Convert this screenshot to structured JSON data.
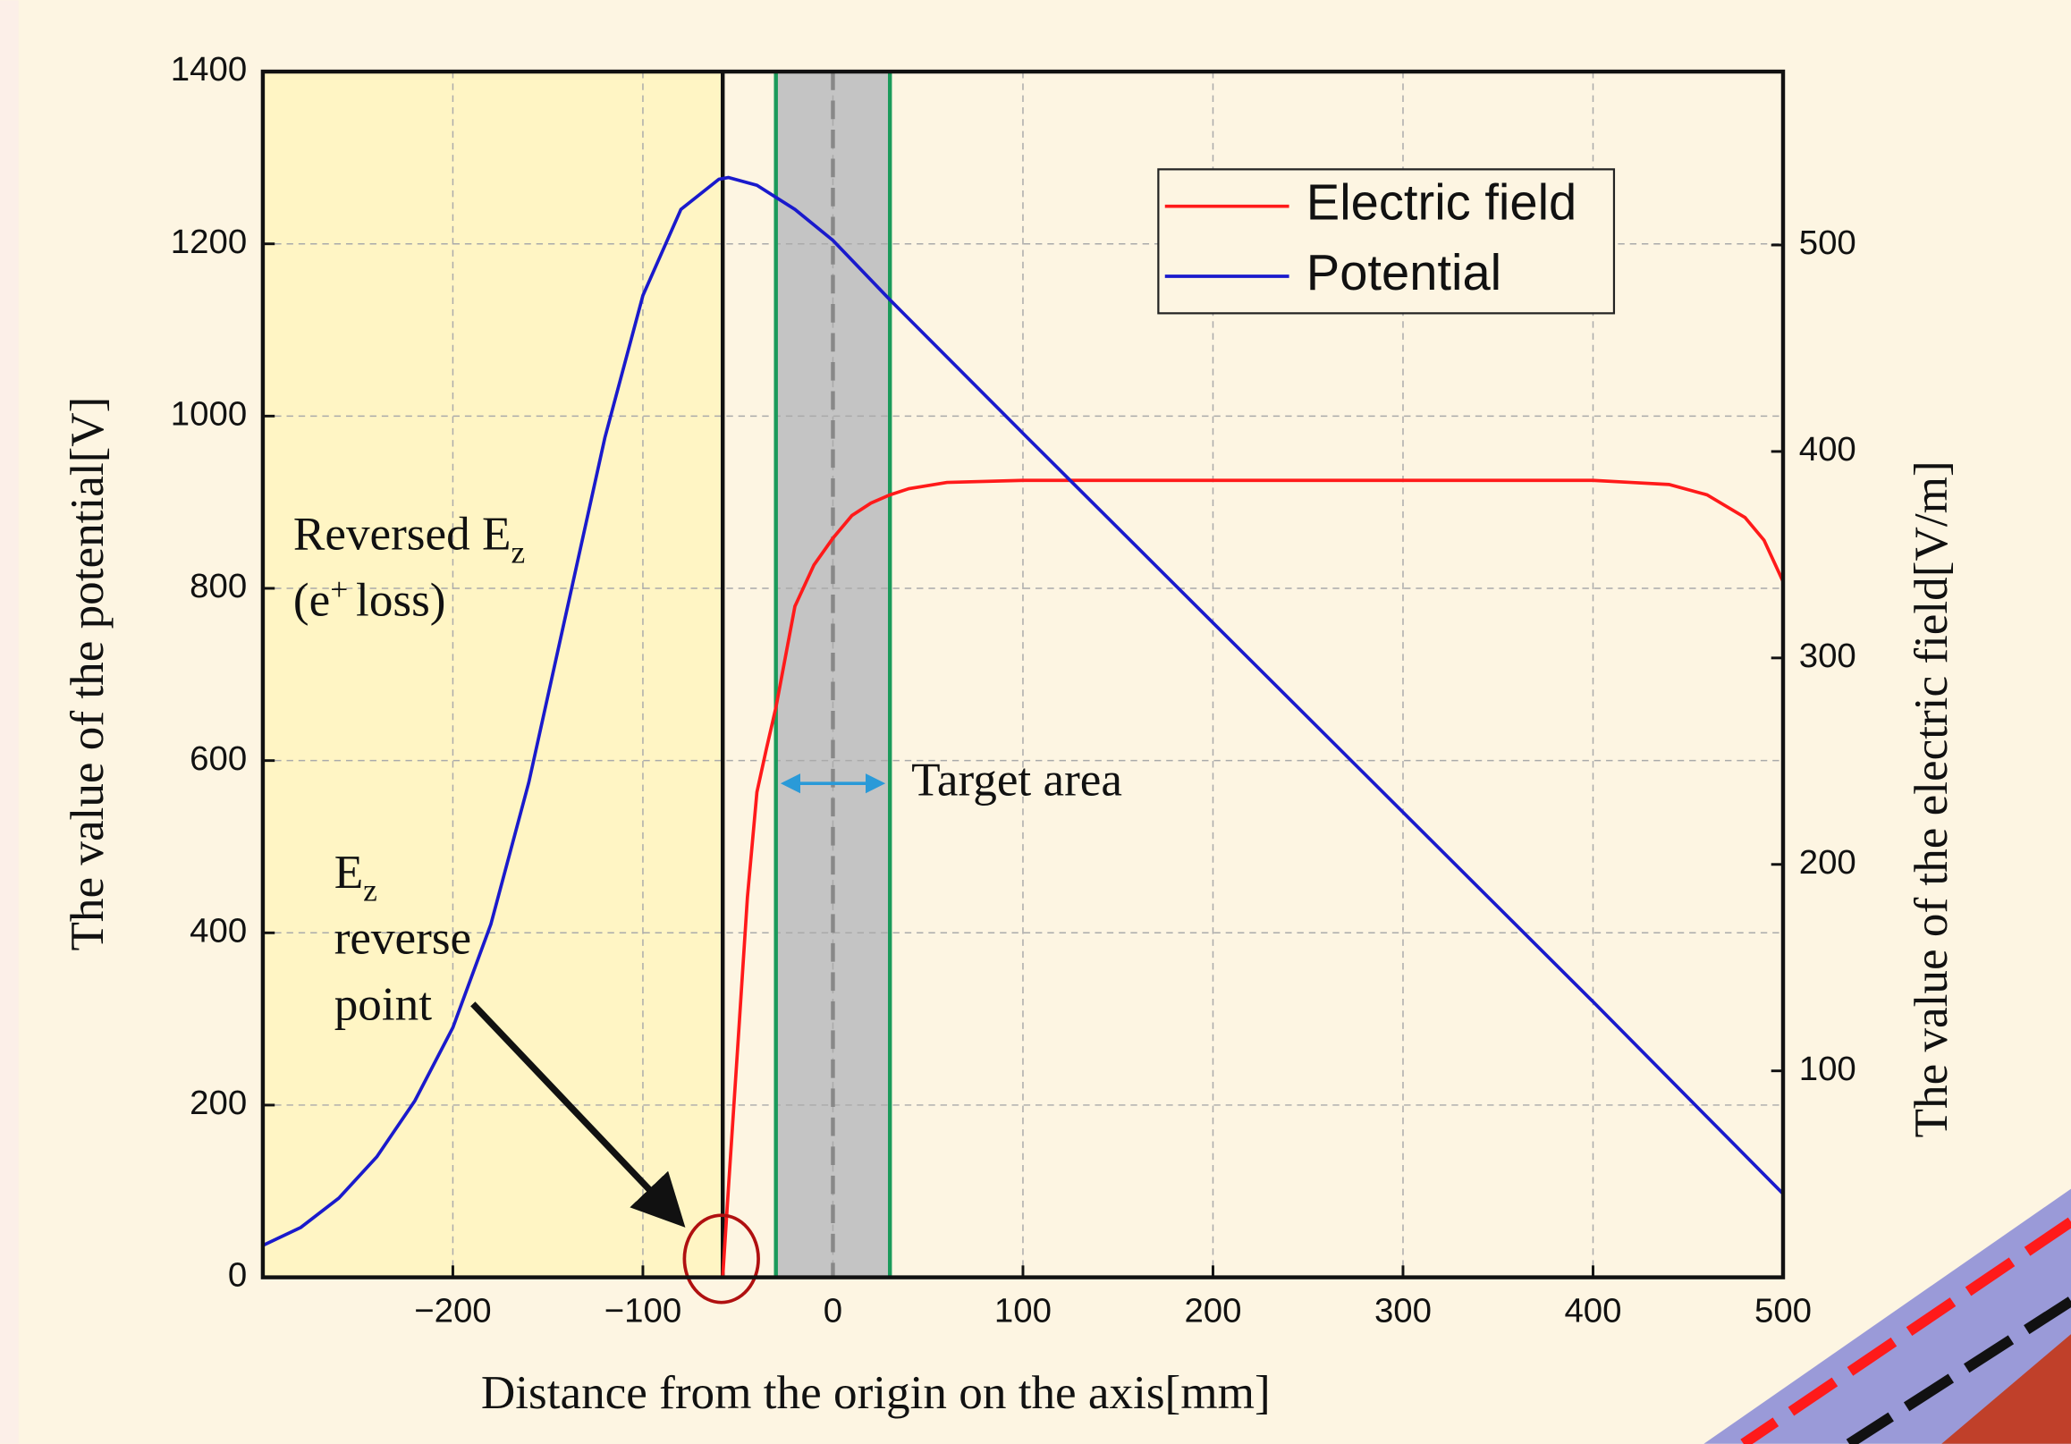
{
  "chart_data": {
    "type": "line",
    "x_label": "Distance from the origin on the axis[mm]",
    "y_label": "The value of the potential[V]",
    "y2_label": "The value of the electric field[V/m]",
    "xlim": [
      -300,
      500
    ],
    "xticks": [
      {
        "value": -200,
        "label": "−200"
      },
      {
        "value": -100,
        "label": "−100"
      },
      0,
      100,
      200,
      300,
      400,
      500
    ],
    "ylim": [
      0,
      1400
    ],
    "yticks": [
      0,
      200,
      400,
      600,
      800,
      1000,
      1200,
      1400
    ],
    "y2lim": [
      0,
      584
    ],
    "y2ticks": [
      100,
      200,
      300,
      400,
      500
    ],
    "grid": true,
    "series": [
      {
        "name": "Electric field",
        "color": "#ff1a1a",
        "axis": "y2",
        "x": [
          -58,
          -55,
          -50,
          -45,
          -40,
          -35,
          -30,
          -20,
          -10,
          0,
          10,
          20,
          30,
          40,
          60,
          100,
          200,
          300,
          400,
          420,
          440,
          460,
          480,
          490,
          500
        ],
        "values": [
          0,
          43,
          113,
          184,
          235,
          256,
          276,
          325,
          345,
          358,
          369,
          375,
          379,
          382,
          385,
          386,
          386,
          386,
          386,
          385,
          384,
          379,
          368,
          357,
          337
        ]
      },
      {
        "name": "Potential",
        "color": "#1a1acc",
        "x": [
          -300,
          -280,
          -260,
          -240,
          -220,
          -200,
          -180,
          -160,
          -140,
          -120,
          -100,
          -80,
          -60,
          -55,
          -40,
          -20,
          0,
          30,
          100,
          200,
          300,
          400,
          500
        ],
        "values": [
          37,
          58,
          92,
          140,
          205,
          290,
          410,
          575,
          775,
          975,
          1140,
          1240,
          1275,
          1277,
          1268,
          1240,
          1204,
          1135,
          980,
          760,
          540,
          320,
          97
        ]
      }
    ],
    "reverse_point_x": -58,
    "target_area_x": [
      -30,
      30
    ],
    "center_line_x": 0,
    "annotations": {
      "reversed": [
        "Reversed E",
        "z",
        "(e",
        "+",
        "loss)"
      ],
      "reverse_point": [
        "E",
        "z",
        "reverse",
        "point"
      ],
      "target": "Target area"
    }
  }
}
